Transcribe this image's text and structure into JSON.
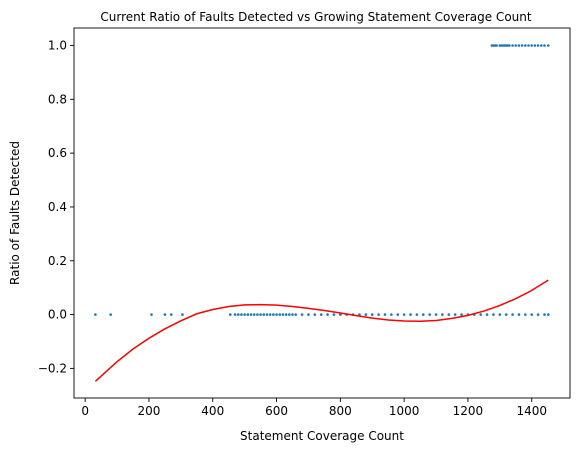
{
  "chart_data": {
    "type": "scatter",
    "title": "Current Ratio of Faults Detected vs Growing Statement Coverage Count",
    "xlabel": "Statement Coverage Count",
    "ylabel": "Ratio of Faults Detected",
    "xlim": [
      -35,
      1520
    ],
    "ylim": [
      -0.31,
      1.065
    ],
    "xticks": [
      0,
      200,
      400,
      600,
      800,
      1000,
      1200,
      1400
    ],
    "xtick_labels": [
      "0",
      "200",
      "400",
      "600",
      "800",
      "1000",
      "1200",
      "1400"
    ],
    "yticks": [
      -0.2,
      0.0,
      0.2,
      0.4,
      0.6,
      0.8,
      1.0
    ],
    "ytick_labels": [
      "−0.2",
      "0.0",
      "0.2",
      "0.4",
      "0.6",
      "0.8",
      "1.0"
    ],
    "grid": false,
    "legend": "none",
    "colors": {
      "points": "#1f77b4",
      "fit": "#ff0000"
    },
    "series": [
      {
        "kind": "scatter",
        "x": [
          32,
          80,
          208,
          250,
          270,
          305,
          455,
          470,
          480,
          490,
          500,
          510,
          520,
          530,
          540,
          550,
          560,
          570,
          580,
          590,
          600,
          610,
          620,
          630,
          640,
          650,
          660,
          680,
          700,
          720,
          740,
          760,
          780,
          800,
          820,
          840,
          860,
          880,
          900,
          920,
          940,
          960,
          980,
          1000,
          1020,
          1040,
          1060,
          1080,
          1100,
          1120,
          1140,
          1160,
          1180,
          1200,
          1220,
          1240,
          1260,
          1280,
          1300,
          1320,
          1340,
          1360,
          1380,
          1400,
          1420,
          1440,
          1452
        ],
        "y": [
          0,
          0,
          0,
          0,
          0,
          0,
          0,
          0,
          0,
          0,
          0,
          0,
          0,
          0,
          0,
          0,
          0,
          0,
          0,
          0,
          0,
          0,
          0,
          0,
          0,
          0,
          0,
          0,
          0,
          0,
          0,
          0,
          0,
          0,
          0,
          0,
          0,
          0,
          0,
          0,
          0,
          0,
          0,
          0,
          0,
          0,
          0,
          0,
          0,
          0,
          0,
          0,
          0,
          0,
          0,
          0,
          0,
          0,
          0,
          0,
          0,
          0,
          0,
          0,
          0,
          0,
          0
        ]
      },
      {
        "kind": "scatter",
        "x": [
          1275,
          1280,
          1285,
          1290,
          1300,
          1305,
          1310,
          1315,
          1320,
          1325,
          1330,
          1340,
          1350,
          1360,
          1370,
          1380,
          1390,
          1400,
          1410,
          1420,
          1430,
          1440,
          1452
        ],
        "y": [
          1,
          1,
          1,
          1,
          1,
          1,
          1,
          1,
          1,
          1,
          1,
          1,
          1,
          1,
          1,
          1,
          1,
          1,
          1,
          1,
          1,
          1,
          1
        ]
      },
      {
        "kind": "line",
        "x": [
          32,
          100,
          150,
          200,
          250,
          300,
          350,
          400,
          450,
          500,
          550,
          600,
          650,
          700,
          750,
          800,
          850,
          900,
          950,
          1000,
          1050,
          1100,
          1150,
          1200,
          1250,
          1300,
          1350,
          1400,
          1452
        ],
        "y": [
          -0.248,
          -0.175,
          -0.128,
          -0.088,
          -0.053,
          -0.023,
          0.003,
          0.019,
          0.03,
          0.036,
          0.037,
          0.035,
          0.03,
          0.023,
          0.015,
          0.006,
          -0.004,
          -0.013,
          -0.02,
          -0.024,
          -0.025,
          -0.022,
          -0.014,
          -0.003,
          0.013,
          0.034,
          0.059,
          0.09,
          0.128
        ]
      }
    ]
  }
}
